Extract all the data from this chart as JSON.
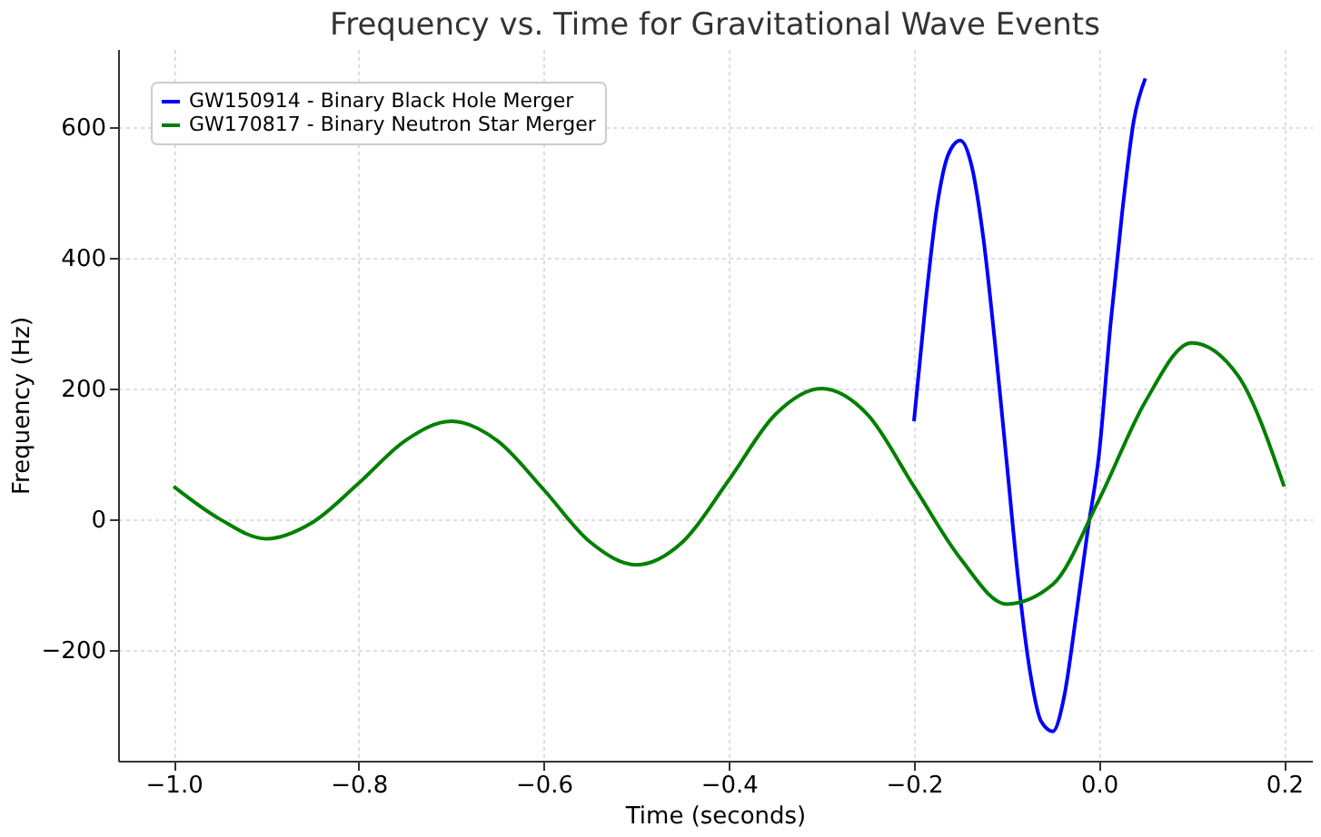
{
  "chart_data": {
    "type": "line",
    "title": "Frequency vs. Time for Gravitational Wave Events",
    "xlabel": "Time (seconds)",
    "ylabel": "Frequency (Hz)",
    "xlim": [
      -1.06,
      0.23
    ],
    "ylim": [
      -370,
      720
    ],
    "xticks": [
      {
        "value": -1,
        "label": "−1.0"
      },
      {
        "value": -0.8,
        "label": "−0.8"
      },
      {
        "value": -0.6,
        "label": "−0.6"
      },
      {
        "value": -0.4,
        "label": "−0.4"
      },
      {
        "value": -0.2,
        "label": "−0.2"
      },
      {
        "value": 0,
        "label": "0.0"
      },
      {
        "value": 0.2,
        "label": "0.2"
      }
    ],
    "yticks": [
      -200,
      0,
      200,
      400,
      600
    ],
    "grid": true,
    "legend": "top left",
    "line_style": "solid",
    "marker": "none",
    "series": [
      {
        "name": "GW150914 - Binary Black Hole Merger",
        "color": "#0000ff",
        "x": [
          -0.2,
          -0.1875,
          -0.175,
          -0.1625,
          -0.15,
          -0.1375,
          -0.125,
          -0.1125,
          -0.1,
          -0.0875,
          -0.075,
          -0.0625,
          -0.05,
          -0.0375,
          -0.025,
          -0.0125,
          0.0,
          0.0125,
          0.025,
          0.0375,
          0.05
        ],
        "values": [
          150,
          330,
          480,
          560,
          580,
          540,
          430,
          270,
          90,
          -90,
          -230,
          -310,
          -325,
          -270,
          -150,
          -20,
          100,
          300,
          470,
          610,
          675
        ]
      },
      {
        "name": "GW170817 - Binary Neutron Star Merger",
        "color": "#008000",
        "x": [
          -1.0,
          -0.95,
          -0.9,
          -0.85,
          -0.8,
          -0.75,
          -0.7,
          -0.65,
          -0.6,
          -0.55,
          -0.5,
          -0.45,
          -0.4,
          -0.35,
          -0.3,
          -0.25,
          -0.2,
          -0.15,
          -0.1,
          -0.05,
          0.0,
          0.05,
          0.1,
          0.15,
          0.2
        ],
        "values": [
          50,
          0,
          -30,
          -5,
          55,
          120,
          150,
          120,
          45,
          -35,
          -70,
          -35,
          60,
          160,
          200,
          160,
          50,
          -60,
          -130,
          -100,
          30,
          180,
          270,
          220,
          50
        ]
      }
    ]
  }
}
